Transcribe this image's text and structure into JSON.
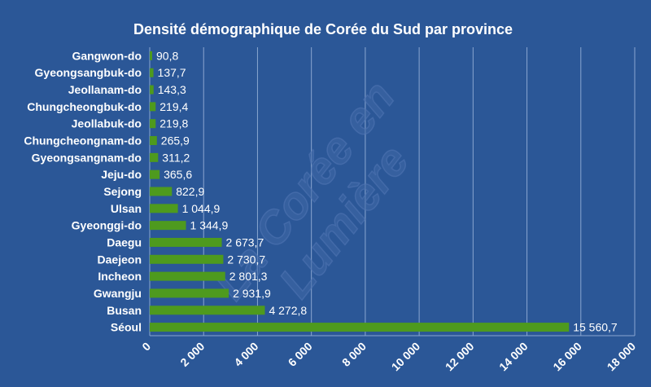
{
  "chart_data": {
    "type": "bar",
    "orientation": "horizontal",
    "title": "Densité démographique de Corée du Sud par province",
    "categories": [
      "Gangwon-do",
      "Gyeongsangbuk-do",
      "Jeollanam-do",
      "Chungcheongbuk-do",
      "Jeollabuk-do",
      "Chungcheongnam-do",
      "Gyeongsangnam-do",
      "Jeju-do",
      "Sejong",
      "Ulsan",
      "Gyeonggi-do",
      "Daegu",
      "Daejeon",
      "Incheon",
      "Gwangju",
      "Busan",
      "Séoul"
    ],
    "values": [
      90.8,
      137.7,
      143.3,
      219.4,
      219.8,
      265.9,
      311.2,
      365.6,
      822.9,
      1044.9,
      1344.9,
      2673.7,
      2730.7,
      2801.3,
      2931.9,
      4272.8,
      15560.7
    ],
    "value_labels": [
      "90,8",
      "137,7",
      "143,3",
      "219,4",
      "219,8",
      "265,9",
      "311,2",
      "365,6",
      "822,9",
      "1 044,9",
      "1 344,9",
      "2 673,7",
      "2 730,7",
      "2 801,3",
      "2 931,9",
      "4 272,8",
      "15 560,7"
    ],
    "xlim": [
      0,
      18000
    ],
    "ticks": [
      0,
      2000,
      4000,
      6000,
      8000,
      10000,
      12000,
      14000,
      16000,
      18000
    ],
    "tick_labels": [
      "0",
      "2 000",
      "4 000",
      "6 000",
      "8 000",
      "10 000",
      "12 000",
      "14 000",
      "16 000",
      "18 000"
    ],
    "grid": true,
    "legend": "none",
    "xlabel": "",
    "ylabel": "",
    "watermark_lines": [
      "La Corée en",
      "Lumière"
    ],
    "colors": {
      "background": "#2b5797",
      "bar": "#4e9a1e",
      "grid": "#8aa6d0",
      "text": "#ffffff"
    }
  }
}
